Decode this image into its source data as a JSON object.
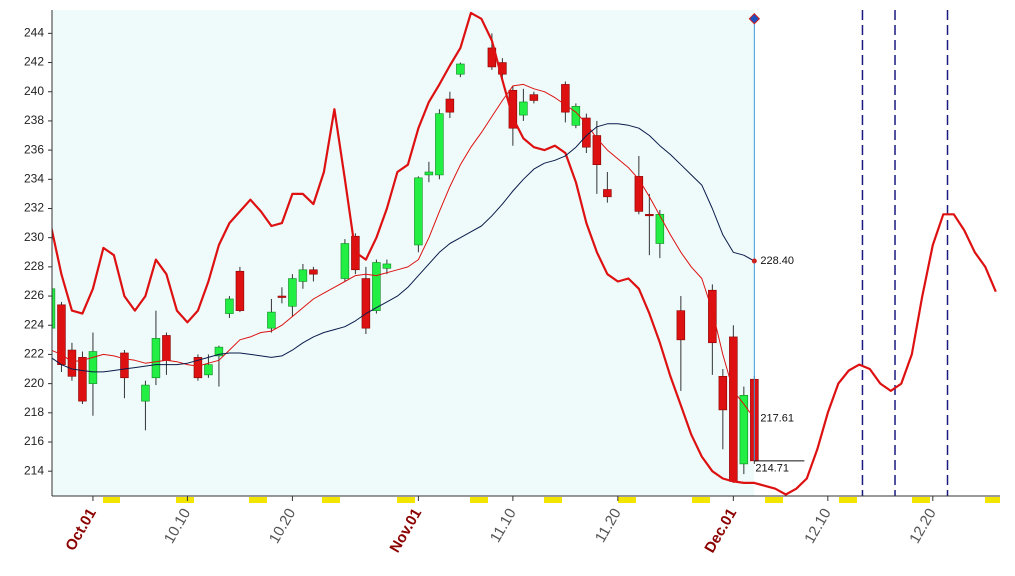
{
  "chart_data": {
    "type": "candlestick",
    "xlim": [
      -2.9,
      87.4
    ],
    "ylim": [
      212.3,
      245.6
    ],
    "yticks": [
      214,
      216,
      218,
      220,
      222,
      224,
      226,
      228,
      230,
      232,
      234,
      236,
      238,
      240,
      242,
      244
    ],
    "xticks": [
      {
        "value": 1,
        "label": "Oct.01"
      },
      {
        "value": 10,
        "label": "10.10"
      },
      {
        "value": 20,
        "label": "10.20"
      },
      {
        "value": 32,
        "label": "Nov.01"
      },
      {
        "value": 41,
        "label": "11.10"
      },
      {
        "value": 51,
        "label": "11.20"
      },
      {
        "value": 62,
        "label": "Dec.01"
      },
      {
        "value": 71,
        "label": "12.10"
      },
      {
        "value": 81,
        "label": "12.20"
      }
    ],
    "up_color": "#22ee44",
    "down_color": "#dd1111",
    "candles": {
      "x": [
        -3,
        -2,
        -1,
        0,
        1,
        4,
        6,
        7,
        8,
        11,
        12,
        13,
        14,
        15,
        18,
        19,
        20,
        21,
        22,
        25,
        26,
        27,
        28,
        29,
        32,
        33,
        34,
        35,
        36,
        39,
        40,
        41,
        42,
        43,
        46,
        47,
        48,
        49,
        50,
        53,
        54,
        55,
        57,
        60,
        61,
        62,
        63,
        64
      ],
      "open": [
        223.8,
        225.4,
        222.3,
        221.8,
        220.0,
        222.1,
        218.8,
        220.4,
        223.3,
        221.8,
        220.6,
        221.9,
        224.8,
        227.7,
        223.8,
        226.0,
        225.3,
        227.0,
        227.8,
        227.2,
        230.1,
        227.2,
        225.0,
        227.9,
        229.5,
        234.3,
        234.3,
        239.5,
        241.2,
        243.0,
        242.0,
        240.1,
        238.4,
        239.8,
        240.5,
        237.7,
        238.2,
        237.0,
        233.3,
        234.2,
        231.6,
        229.6,
        225.0,
        226.4,
        220.5,
        223.2,
        214.5,
        220.3
      ],
      "high": [
        227.6,
        225.6,
        222.8,
        222.2,
        223.5,
        222.3,
        220.2,
        225.0,
        223.5,
        222.0,
        222.0,
        222.6,
        226.0,
        228.0,
        225.8,
        226.6,
        227.5,
        228.2,
        228.0,
        229.9,
        230.3,
        228.0,
        228.5,
        228.5,
        234.2,
        235.2,
        238.8,
        240.0,
        242.0,
        244.0,
        242.3,
        240.4,
        240.2,
        240.0,
        240.7,
        239.2,
        238.5,
        238.0,
        234.5,
        235.6,
        233.0,
        231.9,
        226.0,
        226.8,
        221.0,
        224.0,
        219.8,
        220.5
      ],
      "low": [
        223.0,
        220.8,
        220.2,
        218.6,
        217.8,
        219.0,
        216.8,
        219.9,
        220.6,
        220.2,
        220.4,
        219.8,
        224.5,
        224.9,
        223.5,
        225.5,
        224.6,
        226.5,
        227.0,
        227.0,
        227.5,
        223.4,
        224.8,
        227.5,
        229.0,
        233.8,
        234.0,
        238.2,
        241.0,
        241.5,
        240.8,
        236.3,
        238.0,
        239.2,
        237.9,
        237.5,
        235.8,
        233.0,
        232.4,
        231.6,
        228.8,
        228.6,
        219.5,
        220.6,
        215.5,
        213.2,
        213.8,
        214.5
      ],
      "close": [
        226.5,
        221.3,
        220.5,
        218.8,
        222.2,
        220.4,
        219.9,
        223.1,
        221.6,
        220.4,
        221.3,
        222.5,
        225.8,
        225.0,
        224.9,
        225.9,
        227.2,
        227.8,
        227.5,
        229.6,
        227.8,
        223.8,
        228.3,
        228.2,
        234.1,
        234.5,
        238.5,
        238.6,
        241.9,
        241.7,
        241.2,
        237.5,
        239.3,
        239.4,
        238.6,
        239.0,
        236.2,
        235.0,
        232.8,
        231.8,
        231.5,
        231.6,
        223.0,
        222.8,
        218.2,
        213.3,
        219.2,
        214.71
      ]
    },
    "lines": [
      {
        "color": "#dd1111",
        "width": 2.2,
        "x": [
          -3,
          -2,
          -1,
          0,
          1,
          2,
          3,
          4,
          5,
          6,
          7,
          8,
          9,
          10,
          11,
          12,
          13,
          14,
          15,
          16,
          17,
          18,
          19,
          20,
          21,
          22,
          23,
          24,
          25,
          26,
          27,
          28,
          29,
          30,
          31,
          32,
          33,
          34,
          35,
          36,
          37,
          38,
          39,
          40,
          41,
          42,
          43,
          44,
          45,
          46,
          47,
          48,
          49,
          50,
          51,
          52,
          53,
          54,
          55,
          56,
          57,
          58,
          59,
          60,
          61,
          62,
          63,
          64,
          65,
          66,
          67,
          68,
          69,
          70,
          71,
          72,
          73,
          74,
          75,
          76,
          77,
          78,
          79,
          80,
          81,
          82,
          83,
          84,
          85,
          86,
          87
        ],
        "values": [
          230.8,
          227.5,
          225.0,
          224.8,
          226.5,
          229.3,
          228.8,
          226.0,
          225.0,
          226.0,
          228.5,
          227.5,
          225.0,
          224.2,
          225.0,
          227.0,
          229.5,
          231.0,
          231.8,
          232.6,
          231.8,
          230.8,
          231.0,
          233.0,
          233.0,
          232.3,
          234.5,
          238.8,
          234.0,
          229.0,
          228.5,
          230.0,
          232.0,
          234.5,
          235.0,
          237.5,
          239.3,
          240.5,
          241.8,
          243.0,
          245.4,
          245.0,
          243.5,
          240.8,
          238.2,
          236.8,
          236.2,
          236.0,
          236.3,
          235.8,
          233.8,
          231.0,
          229.0,
          227.5,
          227.0,
          227.2,
          226.5,
          224.8,
          222.8,
          220.5,
          218.5,
          216.5,
          215.0,
          214.0,
          213.5,
          213.3,
          213.2,
          213.2,
          213.0,
          212.8,
          212.4,
          212.8,
          213.5,
          215.5,
          218.0,
          220.0,
          220.9,
          221.3,
          221.0,
          220.0,
          219.5,
          220.0,
          222.0,
          226.0,
          229.5,
          231.6,
          231.6,
          230.5,
          229.0,
          228.0,
          226.3
        ]
      },
      {
        "color": "#dd1111",
        "width": 1,
        "x": [
          -3,
          -2,
          -1,
          0,
          1,
          2,
          3,
          4,
          5,
          6,
          7,
          8,
          9,
          10,
          11,
          12,
          13,
          14,
          15,
          16,
          17,
          18,
          19,
          20,
          21,
          22,
          23,
          24,
          25,
          26,
          27,
          28,
          29,
          30,
          31,
          32,
          33,
          34,
          35,
          36,
          37,
          38,
          39,
          40,
          41,
          42,
          43,
          44,
          45,
          46,
          47,
          48,
          49,
          50,
          51,
          52,
          53,
          54,
          55,
          56,
          57,
          58,
          59,
          60,
          61,
          62,
          63,
          64
        ],
        "values": [
          222.3,
          222.0,
          221.5,
          221.6,
          221.8,
          222.0,
          221.9,
          221.7,
          221.6,
          221.4,
          221.5,
          221.6,
          221.5,
          221.3,
          221.2,
          221.4,
          221.6,
          222.3,
          223.0,
          223.2,
          223.5,
          223.6,
          224.0,
          224.6,
          225.2,
          225.8,
          226.2,
          226.6,
          227.0,
          227.4,
          227.5,
          227.4,
          227.6,
          227.8,
          228.0,
          228.5,
          230.0,
          231.8,
          233.5,
          235.0,
          236.2,
          237.2,
          238.3,
          239.4,
          240.4,
          240.5,
          240.2,
          240.0,
          239.6,
          239.1,
          238.6,
          237.8,
          236.8,
          236.0,
          235.4,
          234.8,
          234.0,
          232.8,
          231.5,
          230.2,
          229.0,
          228.0,
          227.2,
          225.0,
          222.0,
          219.5,
          218.6,
          217.61
        ]
      },
      {
        "color": "#0a1a4a",
        "width": 1,
        "x": [
          -3,
          -2,
          -1,
          0,
          1,
          2,
          3,
          4,
          5,
          6,
          7,
          8,
          9,
          10,
          11,
          12,
          13,
          14,
          15,
          16,
          17,
          18,
          19,
          20,
          21,
          22,
          23,
          24,
          25,
          26,
          27,
          28,
          29,
          30,
          31,
          32,
          33,
          34,
          35,
          36,
          37,
          38,
          39,
          40,
          41,
          42,
          43,
          44,
          45,
          46,
          47,
          48,
          49,
          50,
          51,
          52,
          53,
          54,
          55,
          56,
          57,
          58,
          59,
          60,
          61,
          62,
          63,
          64
        ],
        "values": [
          221.8,
          221.3,
          221.0,
          220.9,
          220.8,
          220.8,
          220.9,
          221.0,
          221.1,
          221.2,
          221.3,
          221.3,
          221.3,
          221.4,
          221.6,
          221.8,
          222.0,
          222.1,
          222.1,
          222.0,
          221.9,
          221.8,
          221.9,
          222.3,
          222.8,
          223.2,
          223.5,
          223.7,
          223.9,
          224.3,
          224.8,
          225.2,
          225.6,
          226.0,
          226.6,
          227.4,
          228.2,
          229.0,
          229.6,
          230.0,
          230.4,
          230.8,
          231.5,
          232.3,
          233.2,
          234.0,
          234.7,
          235.1,
          235.3,
          235.6,
          236.2,
          237.0,
          237.6,
          237.8,
          237.8,
          237.7,
          237.5,
          237.0,
          236.3,
          235.7,
          235.0,
          234.3,
          233.6,
          232.0,
          230.2,
          229.0,
          228.8,
          228.4
        ]
      }
    ],
    "vlines": {
      "x": [
        74.3,
        77.4,
        82.4
      ],
      "color": "#1a1a80"
    },
    "cursor": {
      "x": 64,
      "top": 245.0,
      "color": "#3a9ad9"
    },
    "annotations": [
      {
        "x": 64,
        "value": 228.4,
        "label": "228.40"
      },
      {
        "x": 64,
        "value": 217.61,
        "label": "217.61"
      },
      {
        "x": 64,
        "value": 214.71,
        "label": "214.71"
      }
    ]
  }
}
